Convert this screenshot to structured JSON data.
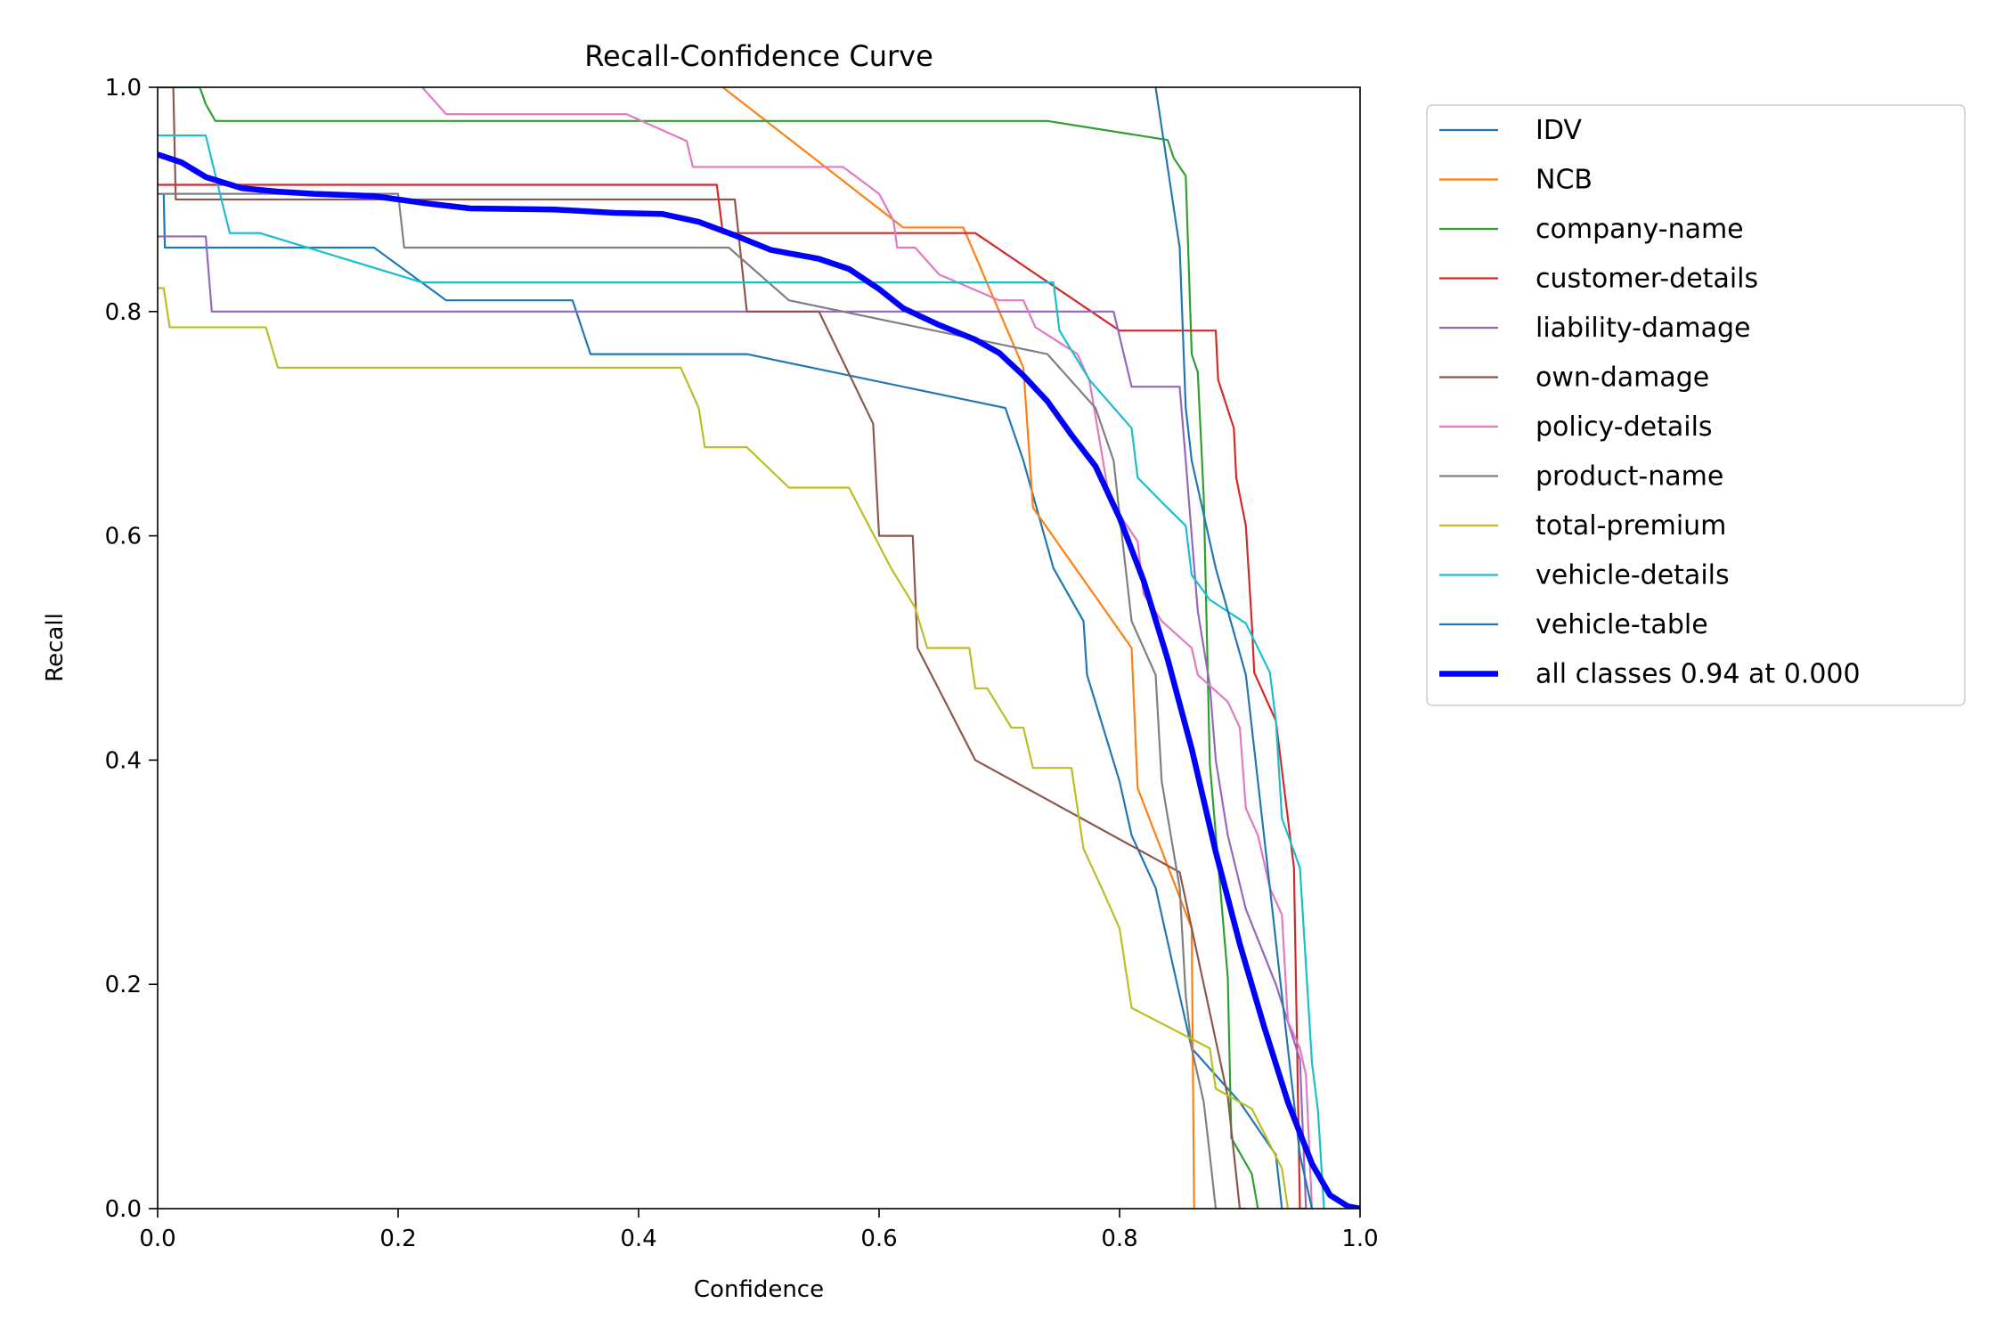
{
  "chart_data": {
    "type": "line",
    "title": "Recall-Confidence Curve",
    "xlabel": "Confidence",
    "ylabel": "Recall",
    "xlim": [
      0,
      1
    ],
    "ylim": [
      0,
      1
    ],
    "x_ticks": [
      "0.0",
      "0.2",
      "0.4",
      "0.6",
      "0.8",
      "1.0"
    ],
    "y_ticks": [
      "0.0",
      "0.2",
      "0.4",
      "0.6",
      "0.8",
      "1.0"
    ],
    "grid": false,
    "legend_position": "outside-right-top",
    "series": [
      {
        "name": "IDV",
        "color": "#1f77b4",
        "width": 1.5,
        "points": [
          [
            0,
            0.905
          ],
          [
            0.005,
            0.905
          ],
          [
            0.006,
            0.857
          ],
          [
            0.18,
            0.857
          ],
          [
            0.24,
            0.81
          ],
          [
            0.345,
            0.81
          ],
          [
            0.36,
            0.762
          ],
          [
            0.49,
            0.762
          ],
          [
            0.705,
            0.714
          ],
          [
            0.72,
            0.667
          ],
          [
            0.745,
            0.571
          ],
          [
            0.77,
            0.524
          ],
          [
            0.773,
            0.476
          ],
          [
            0.8,
            0.381
          ],
          [
            0.81,
            0.333
          ],
          [
            0.83,
            0.286
          ],
          [
            0.84,
            0.238
          ],
          [
            0.85,
            0.19
          ],
          [
            0.86,
            0.143
          ],
          [
            0.9,
            0.095
          ],
          [
            0.93,
            0.048
          ],
          [
            0.935,
            0
          ]
        ]
      },
      {
        "name": "NCB",
        "color": "#ff7f0e",
        "width": 1.5,
        "points": [
          [
            0.47,
            1.0
          ],
          [
            0.62,
            0.875
          ],
          [
            0.67,
            0.875
          ],
          [
            0.72,
            0.75
          ],
          [
            0.728,
            0.625
          ],
          [
            0.81,
            0.5
          ],
          [
            0.815,
            0.375
          ],
          [
            0.86,
            0.25
          ],
          [
            0.862,
            0
          ],
          [
            0.863,
            0
          ]
        ]
      },
      {
        "name": "company-name",
        "color": "#2ca02c",
        "width": 1.5,
        "points": [
          [
            0,
            1.0
          ],
          [
            0.035,
            1.0
          ],
          [
            0.04,
            0.985
          ],
          [
            0.048,
            0.97
          ],
          [
            0.74,
            0.97
          ],
          [
            0.84,
            0.953
          ],
          [
            0.845,
            0.937
          ],
          [
            0.855,
            0.921
          ],
          [
            0.86,
            0.762
          ],
          [
            0.865,
            0.746
          ],
          [
            0.87,
            0.635
          ],
          [
            0.875,
            0.397
          ],
          [
            0.89,
            0.206
          ],
          [
            0.893,
            0.063
          ],
          [
            0.91,
            0.031
          ],
          [
            0.915,
            0
          ]
        ]
      },
      {
        "name": "customer-details",
        "color": "#d62728",
        "width": 1.5,
        "points": [
          [
            0,
            0.913
          ],
          [
            0.465,
            0.913
          ],
          [
            0.47,
            0.87
          ],
          [
            0.68,
            0.87
          ],
          [
            0.8,
            0.783
          ],
          [
            0.88,
            0.783
          ],
          [
            0.882,
            0.739
          ],
          [
            0.895,
            0.696
          ],
          [
            0.897,
            0.652
          ],
          [
            0.905,
            0.609
          ],
          [
            0.91,
            0.522
          ],
          [
            0.912,
            0.478
          ],
          [
            0.93,
            0.435
          ],
          [
            0.935,
            0.391
          ],
          [
            0.945,
            0.304
          ],
          [
            0.95,
            0
          ],
          [
            0.955,
            0
          ]
        ]
      },
      {
        "name": "liability-damage",
        "color": "#9467bd",
        "width": 1.5,
        "points": [
          [
            0,
            0.867
          ],
          [
            0.04,
            0.867
          ],
          [
            0.045,
            0.8
          ],
          [
            0.795,
            0.8
          ],
          [
            0.81,
            0.733
          ],
          [
            0.85,
            0.733
          ],
          [
            0.855,
            0.667
          ],
          [
            0.86,
            0.6
          ],
          [
            0.865,
            0.533
          ],
          [
            0.875,
            0.467
          ],
          [
            0.88,
            0.4
          ],
          [
            0.89,
            0.333
          ],
          [
            0.905,
            0.267
          ],
          [
            0.93,
            0.2
          ],
          [
            0.95,
            0.133
          ],
          [
            0.955,
            0
          ]
        ]
      },
      {
        "name": "own-damage",
        "color": "#8c564b",
        "width": 1.5,
        "points": [
          [
            0,
            1.0
          ],
          [
            0.013,
            1.0
          ],
          [
            0.015,
            0.9
          ],
          [
            0.48,
            0.9
          ],
          [
            0.49,
            0.8
          ],
          [
            0.55,
            0.8
          ],
          [
            0.595,
            0.7
          ],
          [
            0.6,
            0.6
          ],
          [
            0.628,
            0.6
          ],
          [
            0.632,
            0.5
          ],
          [
            0.68,
            0.4
          ],
          [
            0.85,
            0.3
          ],
          [
            0.87,
            0.2
          ],
          [
            0.89,
            0.1
          ],
          [
            0.9,
            0
          ],
          [
            0.905,
            0
          ]
        ]
      },
      {
        "name": "policy-details",
        "color": "#e377c2",
        "width": 1.5,
        "points": [
          [
            0.22,
            1.0
          ],
          [
            0.24,
            0.976
          ],
          [
            0.39,
            0.976
          ],
          [
            0.44,
            0.952
          ],
          [
            0.445,
            0.929
          ],
          [
            0.57,
            0.929
          ],
          [
            0.6,
            0.905
          ],
          [
            0.612,
            0.881
          ],
          [
            0.615,
            0.857
          ],
          [
            0.63,
            0.857
          ],
          [
            0.65,
            0.833
          ],
          [
            0.7,
            0.81
          ],
          [
            0.72,
            0.81
          ],
          [
            0.73,
            0.786
          ],
          [
            0.765,
            0.762
          ],
          [
            0.775,
            0.738
          ],
          [
            0.79,
            0.643
          ],
          [
            0.8,
            0.619
          ],
          [
            0.815,
            0.595
          ],
          [
            0.82,
            0.548
          ],
          [
            0.835,
            0.524
          ],
          [
            0.86,
            0.5
          ],
          [
            0.865,
            0.476
          ],
          [
            0.89,
            0.452
          ],
          [
            0.9,
            0.429
          ],
          [
            0.905,
            0.357
          ],
          [
            0.915,
            0.333
          ],
          [
            0.925,
            0.286
          ],
          [
            0.935,
            0.262
          ],
          [
            0.94,
            0.167
          ],
          [
            0.95,
            0.143
          ],
          [
            0.955,
            0.119
          ],
          [
            0.96,
            0
          ]
        ]
      },
      {
        "name": "product-name",
        "color": "#7f7f7f",
        "width": 1.5,
        "points": [
          [
            0,
            0.905
          ],
          [
            0.2,
            0.905
          ],
          [
            0.205,
            0.857
          ],
          [
            0.475,
            0.857
          ],
          [
            0.525,
            0.81
          ],
          [
            0.74,
            0.762
          ],
          [
            0.78,
            0.714
          ],
          [
            0.795,
            0.667
          ],
          [
            0.8,
            0.619
          ],
          [
            0.81,
            0.524
          ],
          [
            0.83,
            0.476
          ],
          [
            0.835,
            0.381
          ],
          [
            0.85,
            0.286
          ],
          [
            0.855,
            0.19
          ],
          [
            0.86,
            0.143
          ],
          [
            0.87,
            0.095
          ],
          [
            0.875,
            0.048
          ],
          [
            0.88,
            0
          ]
        ]
      },
      {
        "name": "total-premium",
        "color": "#bcbd22",
        "width": 1.5,
        "points": [
          [
            0,
            0.821
          ],
          [
            0.005,
            0.821
          ],
          [
            0.01,
            0.786
          ],
          [
            0.09,
            0.786
          ],
          [
            0.1,
            0.75
          ],
          [
            0.435,
            0.75
          ],
          [
            0.45,
            0.714
          ],
          [
            0.455,
            0.679
          ],
          [
            0.49,
            0.679
          ],
          [
            0.525,
            0.643
          ],
          [
            0.575,
            0.643
          ],
          [
            0.61,
            0.571
          ],
          [
            0.63,
            0.536
          ],
          [
            0.64,
            0.5
          ],
          [
            0.675,
            0.5
          ],
          [
            0.68,
            0.464
          ],
          [
            0.69,
            0.464
          ],
          [
            0.71,
            0.429
          ],
          [
            0.72,
            0.429
          ],
          [
            0.728,
            0.393
          ],
          [
            0.76,
            0.393
          ],
          [
            0.77,
            0.321
          ],
          [
            0.785,
            0.286
          ],
          [
            0.8,
            0.25
          ],
          [
            0.805,
            0.214
          ],
          [
            0.81,
            0.179
          ],
          [
            0.875,
            0.143
          ],
          [
            0.88,
            0.107
          ],
          [
            0.91,
            0.089
          ],
          [
            0.935,
            0.036
          ],
          [
            0.94,
            0
          ]
        ]
      },
      {
        "name": "vehicle-details",
        "color": "#17becf",
        "width": 1.5,
        "points": [
          [
            0,
            0.957
          ],
          [
            0.04,
            0.957
          ],
          [
            0.05,
            0.913
          ],
          [
            0.06,
            0.87
          ],
          [
            0.085,
            0.87
          ],
          [
            0.22,
            0.826
          ],
          [
            0.745,
            0.826
          ],
          [
            0.75,
            0.783
          ],
          [
            0.775,
            0.739
          ],
          [
            0.81,
            0.696
          ],
          [
            0.815,
            0.652
          ],
          [
            0.835,
            0.63
          ],
          [
            0.855,
            0.609
          ],
          [
            0.86,
            0.565
          ],
          [
            0.875,
            0.543
          ],
          [
            0.905,
            0.522
          ],
          [
            0.925,
            0.478
          ],
          [
            0.93,
            0.435
          ],
          [
            0.935,
            0.348
          ],
          [
            0.95,
            0.304
          ],
          [
            0.955,
            0.217
          ],
          [
            0.96,
            0.13
          ],
          [
            0.965,
            0.087
          ],
          [
            0.97,
            0
          ]
        ]
      },
      {
        "name": "vehicle-table",
        "color": "#1f77b4",
        "width": 1.5,
        "points": [
          [
            0.83,
            1.0
          ],
          [
            0.85,
            0.857
          ],
          [
            0.855,
            0.714
          ],
          [
            0.86,
            0.667
          ],
          [
            0.88,
            0.571
          ],
          [
            0.905,
            0.476
          ],
          [
            0.915,
            0.381
          ],
          [
            0.925,
            0.286
          ],
          [
            0.935,
            0.19
          ],
          [
            0.945,
            0.095
          ],
          [
            0.95,
            0.048
          ],
          [
            0.96,
            0
          ]
        ]
      },
      {
        "name": "all classes 0.94 at 0.000",
        "color": "#0000ff",
        "width": 4.5,
        "points": [
          [
            0,
            0.94
          ],
          [
            0.02,
            0.933
          ],
          [
            0.04,
            0.92
          ],
          [
            0.07,
            0.91
          ],
          [
            0.1,
            0.907
          ],
          [
            0.13,
            0.905
          ],
          [
            0.18,
            0.903
          ],
          [
            0.22,
            0.897
          ],
          [
            0.26,
            0.892
          ],
          [
            0.33,
            0.891
          ],
          [
            0.38,
            0.888
          ],
          [
            0.42,
            0.887
          ],
          [
            0.45,
            0.88
          ],
          [
            0.48,
            0.868
          ],
          [
            0.51,
            0.855
          ],
          [
            0.55,
            0.847
          ],
          [
            0.575,
            0.838
          ],
          [
            0.6,
            0.82
          ],
          [
            0.62,
            0.803
          ],
          [
            0.65,
            0.788
          ],
          [
            0.68,
            0.775
          ],
          [
            0.7,
            0.763
          ],
          [
            0.72,
            0.743
          ],
          [
            0.74,
            0.72
          ],
          [
            0.76,
            0.69
          ],
          [
            0.78,
            0.662
          ],
          [
            0.8,
            0.616
          ],
          [
            0.82,
            0.56
          ],
          [
            0.84,
            0.49
          ],
          [
            0.86,
            0.41
          ],
          [
            0.88,
            0.318
          ],
          [
            0.9,
            0.236
          ],
          [
            0.92,
            0.163
          ],
          [
            0.94,
            0.095
          ],
          [
            0.96,
            0.04
          ],
          [
            0.975,
            0.012
          ],
          [
            0.99,
            0.002
          ],
          [
            1.0,
            0
          ]
        ]
      }
    ]
  }
}
